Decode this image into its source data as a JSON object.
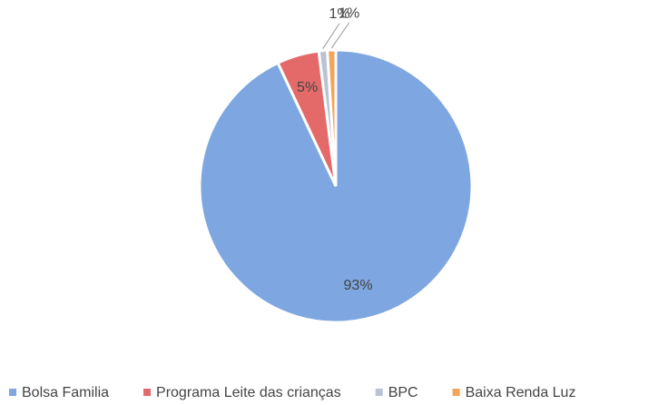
{
  "chart_data": {
    "type": "pie",
    "categories": [
      "Bolsa Familia",
      "Programa Leite das crianças",
      "BPC",
      "Baixa Renda Luz"
    ],
    "values": [
      93,
      5,
      1,
      1
    ],
    "value_labels": [
      "93%",
      "5%",
      "1%",
      "1%"
    ],
    "colors": [
      "#7ea6e0",
      "#e46a6a",
      "#b9c3d3",
      "#f2a45a"
    ],
    "legend": "bottom"
  }
}
